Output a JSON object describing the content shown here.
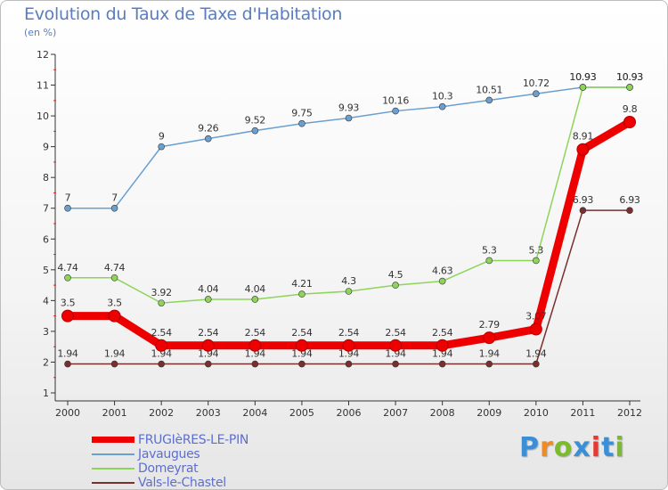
{
  "header": {
    "title": "Evolution du Taux de Taxe d'Habitation",
    "subtitle": "(en %)"
  },
  "brand": {
    "letters": [
      "P",
      "r",
      "o",
      "x",
      "i",
      "t",
      "i"
    ],
    "colors": [
      "#3a8fd6",
      "#f08a24",
      "#7dbb2e",
      "#3a8fd6",
      "#e53935",
      "#3a8fd6",
      "#7dbb2e"
    ]
  },
  "chart_data": {
    "type": "line",
    "x": [
      "2000",
      "2001",
      "2002",
      "2003",
      "2004",
      "2005",
      "2006",
      "2007",
      "2008",
      "2009",
      "2010",
      "2011",
      "2012"
    ],
    "ylim": [
      1,
      12
    ],
    "yticks": [
      "1",
      "2",
      "3",
      "4",
      "5",
      "6",
      "7",
      "8",
      "9",
      "10",
      "11",
      "12"
    ],
    "grid": false,
    "legend_position": "bottom-left",
    "series": [
      {
        "name": "Javaugues",
        "color": "#6a9fd0",
        "values": [
          7,
          7,
          9,
          9.26,
          9.52,
          9.75,
          9.93,
          10.16,
          10.3,
          10.51,
          10.72,
          10.93,
          10.93
        ],
        "labels": [
          "7",
          "7",
          "9",
          "9.26",
          "9.52",
          "9.75",
          "9.93",
          "10.16",
          "10.3",
          "10.51",
          "10.72",
          "10.93",
          "10.93"
        ]
      },
      {
        "name": "Domeyrat",
        "color": "#8fd45a",
        "values": [
          4.74,
          4.74,
          3.92,
          4.04,
          4.04,
          4.21,
          4.3,
          4.5,
          4.63,
          5.3,
          5.3,
          10.93,
          10.93
        ],
        "labels": [
          "4.74",
          "4.74",
          "3.92",
          "4.04",
          "4.04",
          "4.21",
          "4.3",
          "4.5",
          "4.63",
          "5.3",
          "5.3",
          "10.93",
          "10.93"
        ]
      },
      {
        "name": "Vals-le-Chastel",
        "color": "#7a2f2f",
        "values": [
          1.94,
          1.94,
          1.94,
          1.94,
          1.94,
          1.94,
          1.94,
          1.94,
          1.94,
          1.94,
          1.94,
          6.93,
          6.93
        ],
        "labels": [
          "1.94",
          "1.94",
          "1.94",
          "1.94",
          "1.94",
          "1.94",
          "1.94",
          "1.94",
          "1.94",
          "1.94",
          "1.94",
          "6.93",
          "6.93"
        ]
      },
      {
        "name": "FRUGIèRES-LE-PIN",
        "color": "#ee0000",
        "values": [
          3.5,
          3.5,
          2.54,
          2.54,
          2.54,
          2.54,
          2.54,
          2.54,
          2.54,
          2.79,
          3.07,
          8.91,
          9.8
        ],
        "labels": [
          "3.5",
          "3.5",
          "2.54",
          "2.54",
          "2.54",
          "2.54",
          "2.54",
          "2.54",
          "2.54",
          "2.79",
          "3.07",
          "8.91",
          "9.8"
        ]
      }
    ],
    "legend_order": [
      "FRUGIèRES-LE-PIN",
      "Javaugues",
      "Domeyrat",
      "Vals-le-Chastel"
    ]
  }
}
